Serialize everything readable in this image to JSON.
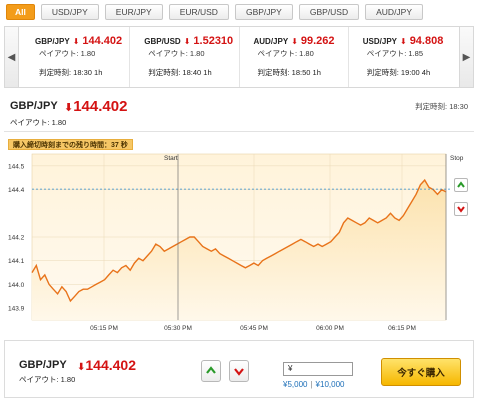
{
  "tabs": [
    "All",
    "USD/JPY",
    "EUR/JPY",
    "EUR/USD",
    "GBP/JPY",
    "GBP/USD",
    "AUD/JPY"
  ],
  "ticker": [
    {
      "pair": "GBP/JPY",
      "price": "144.402",
      "payout": "ペイアウト: 1.80",
      "judge": "判定時刻: 18:30 1h"
    },
    {
      "pair": "GBP/USD",
      "price": "1.52310",
      "payout": "ペイアウト: 1.80",
      "judge": "判定時刻: 18:40 1h"
    },
    {
      "pair": "AUD/JPY",
      "price": "99.262",
      "payout": "ペイアウト: 1.80",
      "judge": "判定時刻: 18:50 1h"
    },
    {
      "pair": "USD/JPY",
      "price": "94.808",
      "payout": "ペイアウト: 1.85",
      "judge": "判定時刻: 19:00 4h"
    }
  ],
  "main": {
    "pair": "GBP/JPY",
    "price": "144.402",
    "payout": "ペイアウト: 1.80",
    "judge": "判定時刻: 18:30",
    "countdown": "購入締切時刻までの残り時間：37 秒",
    "start_label": "Start",
    "stop_label": "Stop"
  },
  "chart_data": {
    "type": "line",
    "x_ticks": [
      "05:15 PM",
      "05:30 PM",
      "05:45 PM",
      "06:00 PM",
      "06:15 PM"
    ],
    "y_ticks": [
      "144.5",
      "144.4",
      "144.2",
      "144.1",
      "144.0",
      "143.9"
    ],
    "ylim": [
      143.85,
      144.55
    ],
    "current_rate": 144.402,
    "series": [
      {
        "values": [
          144.05,
          144.08,
          144.02,
          144.04,
          144.0,
          143.98,
          143.96,
          143.99,
          143.97,
          143.93,
          143.95,
          143.97,
          143.98,
          143.98,
          143.99,
          144.0,
          144.01,
          144.02,
          144.04,
          144.06,
          144.05,
          144.07,
          144.08,
          144.06,
          144.09,
          144.11,
          144.1,
          144.12,
          144.14,
          144.17,
          144.16,
          144.14,
          144.15,
          144.16,
          144.17,
          144.18,
          144.19,
          144.2,
          144.2,
          144.18,
          144.16,
          144.15,
          144.14,
          144.15,
          144.13,
          144.12,
          144.11,
          144.1,
          144.09,
          144.08,
          144.07,
          144.08,
          144.09,
          144.08,
          144.1,
          144.11,
          144.12,
          144.13,
          144.14,
          144.15,
          144.16,
          144.17,
          144.18,
          144.19,
          144.18,
          144.17,
          144.16,
          144.17,
          144.16,
          144.17,
          144.18,
          144.2,
          144.22,
          144.26,
          144.28,
          144.27,
          144.26,
          144.25,
          144.26,
          144.28,
          144.27,
          144.26,
          144.27,
          144.28,
          144.3,
          144.28,
          144.27,
          144.29,
          144.32,
          144.35,
          144.38,
          144.42,
          144.44,
          144.41,
          144.4,
          144.38,
          144.4,
          144.39
        ]
      }
    ]
  },
  "order": {
    "pair": "GBP/JPY",
    "price": "144.402",
    "payout": "ペイアウト: 1.80",
    "amount_value": "¥",
    "quick1": "¥5,000",
    "sep": "|",
    "quick2": "¥10,000",
    "buy_label": "今すぐ購入"
  },
  "colors": {
    "accent": "#f39c1a",
    "price_red": "#d41313",
    "line": "#e8731a",
    "up_green": "#2a9a2a",
    "down_red": "#d41313"
  }
}
